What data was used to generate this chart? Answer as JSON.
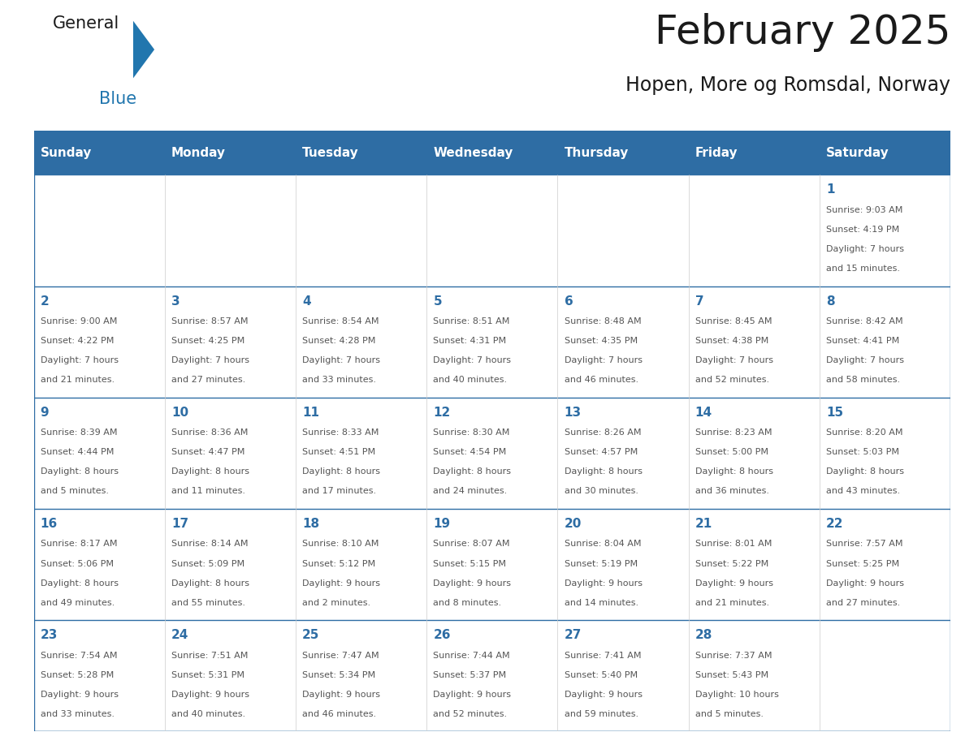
{
  "title": "February 2025",
  "subtitle": "Hopen, More og Romsdal, Norway",
  "header_bg": "#2E6DA4",
  "header_text_color": "#FFFFFF",
  "cell_bg": "#FFFFFF",
  "border_color": "#2E6DA4",
  "text_color": "#555555",
  "day_num_color": "#2E6DA4",
  "day_headers": [
    "Sunday",
    "Monday",
    "Tuesday",
    "Wednesday",
    "Thursday",
    "Friday",
    "Saturday"
  ],
  "days": [
    {
      "day": 1,
      "col": 6,
      "row": 0,
      "sunrise": "9:03 AM",
      "sunset": "4:19 PM",
      "daylight_h": "7",
      "daylight_m": "15"
    },
    {
      "day": 2,
      "col": 0,
      "row": 1,
      "sunrise": "9:00 AM",
      "sunset": "4:22 PM",
      "daylight_h": "7",
      "daylight_m": "21"
    },
    {
      "day": 3,
      "col": 1,
      "row": 1,
      "sunrise": "8:57 AM",
      "sunset": "4:25 PM",
      "daylight_h": "7",
      "daylight_m": "27"
    },
    {
      "day": 4,
      "col": 2,
      "row": 1,
      "sunrise": "8:54 AM",
      "sunset": "4:28 PM",
      "daylight_h": "7",
      "daylight_m": "33"
    },
    {
      "day": 5,
      "col": 3,
      "row": 1,
      "sunrise": "8:51 AM",
      "sunset": "4:31 PM",
      "daylight_h": "7",
      "daylight_m": "40"
    },
    {
      "day": 6,
      "col": 4,
      "row": 1,
      "sunrise": "8:48 AM",
      "sunset": "4:35 PM",
      "daylight_h": "7",
      "daylight_m": "46"
    },
    {
      "day": 7,
      "col": 5,
      "row": 1,
      "sunrise": "8:45 AM",
      "sunset": "4:38 PM",
      "daylight_h": "7",
      "daylight_m": "52"
    },
    {
      "day": 8,
      "col": 6,
      "row": 1,
      "sunrise": "8:42 AM",
      "sunset": "4:41 PM",
      "daylight_h": "7",
      "daylight_m": "58"
    },
    {
      "day": 9,
      "col": 0,
      "row": 2,
      "sunrise": "8:39 AM",
      "sunset": "4:44 PM",
      "daylight_h": "8",
      "daylight_m": "5"
    },
    {
      "day": 10,
      "col": 1,
      "row": 2,
      "sunrise": "8:36 AM",
      "sunset": "4:47 PM",
      "daylight_h": "8",
      "daylight_m": "11"
    },
    {
      "day": 11,
      "col": 2,
      "row": 2,
      "sunrise": "8:33 AM",
      "sunset": "4:51 PM",
      "daylight_h": "8",
      "daylight_m": "17"
    },
    {
      "day": 12,
      "col": 3,
      "row": 2,
      "sunrise": "8:30 AM",
      "sunset": "4:54 PM",
      "daylight_h": "8",
      "daylight_m": "24"
    },
    {
      "day": 13,
      "col": 4,
      "row": 2,
      "sunrise": "8:26 AM",
      "sunset": "4:57 PM",
      "daylight_h": "8",
      "daylight_m": "30"
    },
    {
      "day": 14,
      "col": 5,
      "row": 2,
      "sunrise": "8:23 AM",
      "sunset": "5:00 PM",
      "daylight_h": "8",
      "daylight_m": "36"
    },
    {
      "day": 15,
      "col": 6,
      "row": 2,
      "sunrise": "8:20 AM",
      "sunset": "5:03 PM",
      "daylight_h": "8",
      "daylight_m": "43"
    },
    {
      "day": 16,
      "col": 0,
      "row": 3,
      "sunrise": "8:17 AM",
      "sunset": "5:06 PM",
      "daylight_h": "8",
      "daylight_m": "49"
    },
    {
      "day": 17,
      "col": 1,
      "row": 3,
      "sunrise": "8:14 AM",
      "sunset": "5:09 PM",
      "daylight_h": "8",
      "daylight_m": "55"
    },
    {
      "day": 18,
      "col": 2,
      "row": 3,
      "sunrise": "8:10 AM",
      "sunset": "5:12 PM",
      "daylight_h": "9",
      "daylight_m": "2"
    },
    {
      "day": 19,
      "col": 3,
      "row": 3,
      "sunrise": "8:07 AM",
      "sunset": "5:15 PM",
      "daylight_h": "9",
      "daylight_m": "8"
    },
    {
      "day": 20,
      "col": 4,
      "row": 3,
      "sunrise": "8:04 AM",
      "sunset": "5:19 PM",
      "daylight_h": "9",
      "daylight_m": "14"
    },
    {
      "day": 21,
      "col": 5,
      "row": 3,
      "sunrise": "8:01 AM",
      "sunset": "5:22 PM",
      "daylight_h": "9",
      "daylight_m": "21"
    },
    {
      "day": 22,
      "col": 6,
      "row": 3,
      "sunrise": "7:57 AM",
      "sunset": "5:25 PM",
      "daylight_h": "9",
      "daylight_m": "27"
    },
    {
      "day": 23,
      "col": 0,
      "row": 4,
      "sunrise": "7:54 AM",
      "sunset": "5:28 PM",
      "daylight_h": "9",
      "daylight_m": "33"
    },
    {
      "day": 24,
      "col": 1,
      "row": 4,
      "sunrise": "7:51 AM",
      "sunset": "5:31 PM",
      "daylight_h": "9",
      "daylight_m": "40"
    },
    {
      "day": 25,
      "col": 2,
      "row": 4,
      "sunrise": "7:47 AM",
      "sunset": "5:34 PM",
      "daylight_h": "9",
      "daylight_m": "46"
    },
    {
      "day": 26,
      "col": 3,
      "row": 4,
      "sunrise": "7:44 AM",
      "sunset": "5:37 PM",
      "daylight_h": "9",
      "daylight_m": "52"
    },
    {
      "day": 27,
      "col": 4,
      "row": 4,
      "sunrise": "7:41 AM",
      "sunset": "5:40 PM",
      "daylight_h": "9",
      "daylight_m": "59"
    },
    {
      "day": 28,
      "col": 5,
      "row": 4,
      "sunrise": "7:37 AM",
      "sunset": "5:43 PM",
      "daylight_h": "10",
      "daylight_m": "5"
    }
  ],
  "num_rows": 5,
  "num_cols": 7,
  "logo_color_general": "#1a1a1a",
  "logo_color_blue": "#2176AE",
  "logo_triangle_color": "#2176AE",
  "title_fontsize": 36,
  "subtitle_fontsize": 17,
  "header_fontsize": 11,
  "day_num_fontsize": 11,
  "cell_text_fontsize": 8
}
